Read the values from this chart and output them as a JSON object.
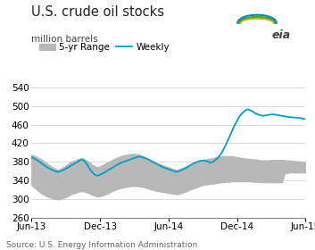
{
  "title": "U.S. crude oil stocks",
  "subtitle": "million barrels",
  "source": "Source: U.S. Energy Information Administration",
  "ylim": [
    260,
    540
  ],
  "yticks": [
    260,
    300,
    340,
    380,
    420,
    460,
    500,
    540
  ],
  "xtick_labels": [
    "Jun-13",
    "Dec-13",
    "Jun-14",
    "Dec-14",
    "Jun-15"
  ],
  "xtick_pos": [
    0,
    26,
    52,
    78,
    104
  ],
  "xlim": [
    0,
    104
  ],
  "weekly_color": "#00a0cc",
  "range_color": "#b8b8b8",
  "bg_color": "#ffffff",
  "grid_color": "#cccccc",
  "legend_range_label": "5-yr Range",
  "legend_weekly_label": "Weekly",
  "title_fontsize": 10.5,
  "subtitle_fontsize": 7.5,
  "source_fontsize": 6.5,
  "tick_fontsize": 7.5,
  "legend_fontsize": 7.5,
  "weekly": [
    390,
    387,
    384,
    380,
    376,
    372,
    368,
    365,
    362,
    360,
    358,
    360,
    362,
    365,
    368,
    372,
    375,
    378,
    382,
    385,
    382,
    375,
    365,
    358,
    352,
    350,
    352,
    355,
    358,
    362,
    365,
    368,
    372,
    375,
    378,
    380,
    382,
    384,
    386,
    388,
    390,
    391,
    390,
    388,
    386,
    383,
    380,
    377,
    374,
    371,
    368,
    366,
    364,
    362,
    360,
    358,
    360,
    362,
    365,
    368,
    372,
    375,
    378,
    380,
    382,
    383,
    382,
    380,
    378,
    380,
    385,
    390,
    398,
    408,
    420,
    432,
    445,
    458,
    468,
    478,
    485,
    490,
    493,
    491,
    488,
    484,
    482,
    480,
    479,
    480,
    481,
    482,
    482,
    481,
    480,
    479,
    478,
    477,
    476,
    476,
    475,
    475,
    474,
    473,
    472
  ],
  "range_upper": [
    395,
    393,
    390,
    387,
    384,
    380,
    376,
    372,
    368,
    365,
    362,
    365,
    368,
    372,
    376,
    380,
    382,
    384,
    386,
    388,
    386,
    382,
    378,
    374,
    370,
    368,
    370,
    373,
    376,
    379,
    382,
    385,
    388,
    390,
    392,
    394,
    395,
    396,
    397,
    397,
    396,
    395,
    393,
    390,
    387,
    384,
    381,
    378,
    376,
    374,
    372,
    370,
    368,
    366,
    364,
    362,
    364,
    366,
    368,
    370,
    373,
    376,
    378,
    380,
    382,
    384,
    385,
    386,
    387,
    388,
    390,
    391,
    392,
    392,
    392,
    392,
    392,
    391,
    390,
    389,
    388,
    387,
    386,
    386,
    385,
    385,
    384,
    383,
    383,
    383,
    383,
    384,
    384,
    384,
    384,
    384,
    383,
    383,
    382,
    382,
    381,
    381,
    380,
    380,
    379
  ],
  "range_lower": [
    330,
    325,
    320,
    315,
    311,
    308,
    305,
    303,
    301,
    300,
    299,
    300,
    302,
    304,
    307,
    310,
    312,
    314,
    316,
    317,
    316,
    314,
    312,
    309,
    307,
    305,
    306,
    308,
    310,
    312,
    315,
    318,
    320,
    322,
    324,
    325,
    326,
    327,
    328,
    328,
    328,
    327,
    326,
    325,
    323,
    321,
    320,
    318,
    317,
    316,
    315,
    314,
    313,
    312,
    311,
    310,
    311,
    313,
    315,
    317,
    320,
    322,
    324,
    326,
    328,
    330,
    331,
    332,
    333,
    333,
    334,
    335,
    336,
    336,
    337,
    337,
    338,
    338,
    338,
    338,
    338,
    338,
    338,
    338,
    337,
    337,
    337,
    336,
    336,
    336,
    336,
    336,
    336,
    336,
    336,
    336,
    355,
    356,
    357,
    357,
    357,
    357,
    357,
    357,
    357
  ]
}
